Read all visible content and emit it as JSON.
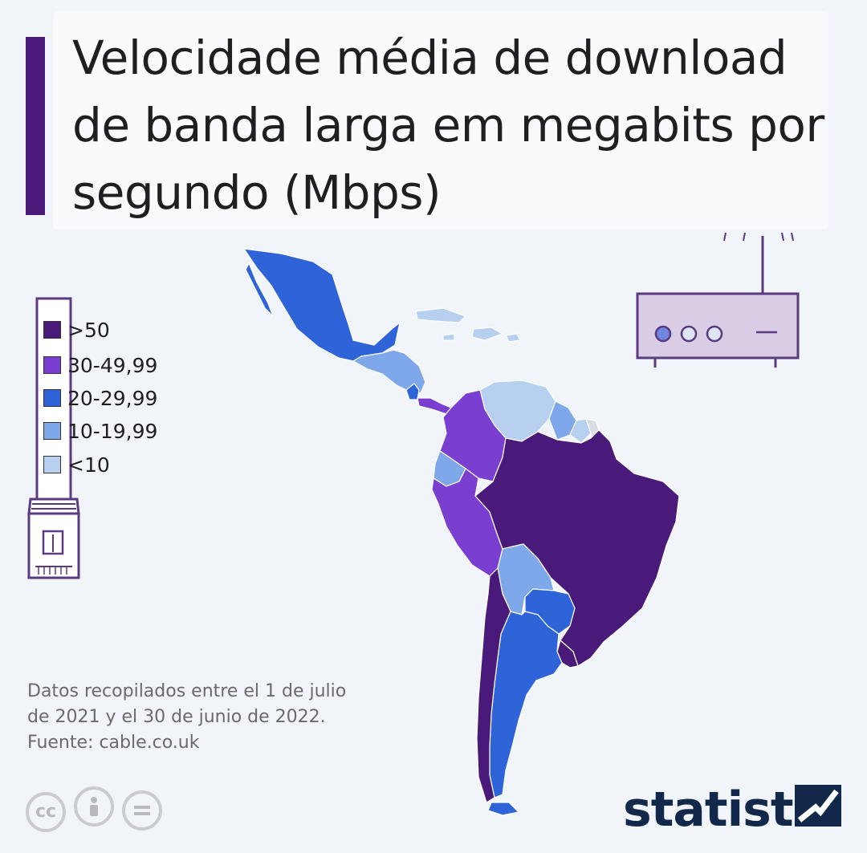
{
  "title": "Velocidade média de download de banda larga em megabits por segundo (Mbps)",
  "legend": [
    {
      "label": ">50",
      "color": "#4a1a7a"
    },
    {
      "label": "30-49,99",
      "color": "#7a3fd0"
    },
    {
      "label": "20-29,99",
      "color": "#2e64d8"
    },
    {
      "label": "10-19,99",
      "color": "#7ea8ea"
    },
    {
      "label": "<10",
      "color": "#b7d0f0"
    }
  ],
  "note": {
    "line1": "Datos recopilados entre el 1 de julio",
    "line2": "de 2021 y el 30 de junio de 2022.",
    "source": "Fuente: cable.co.uk"
  },
  "cc_icons": [
    "cc-icon",
    "person-icon",
    "equals-icon"
  ],
  "brand": "statista",
  "map_regions": [
    {
      "region": "mexico",
      "category": "20-29,99"
    },
    {
      "region": "central-america",
      "category": "10-19,99"
    },
    {
      "region": "panama",
      "category": "30-49,99"
    },
    {
      "region": "colombia",
      "category": "30-49,99"
    },
    {
      "region": "venezuela",
      "category": "<10"
    },
    {
      "region": "guianas",
      "category": "10-19,99"
    },
    {
      "region": "ecuador",
      "category": "10-19,99"
    },
    {
      "region": "peru",
      "category": "30-49,99"
    },
    {
      "region": "brazil",
      "category": ">50"
    },
    {
      "region": "bolivia",
      "category": "10-19,99"
    },
    {
      "region": "paraguay",
      "category": "20-29,99"
    },
    {
      "region": "chile",
      "category": ">50"
    },
    {
      "region": "argentina",
      "category": "20-29,99"
    },
    {
      "region": "uruguay",
      "category": ">50"
    },
    {
      "region": "caribbean",
      "category": "<10"
    }
  ]
}
